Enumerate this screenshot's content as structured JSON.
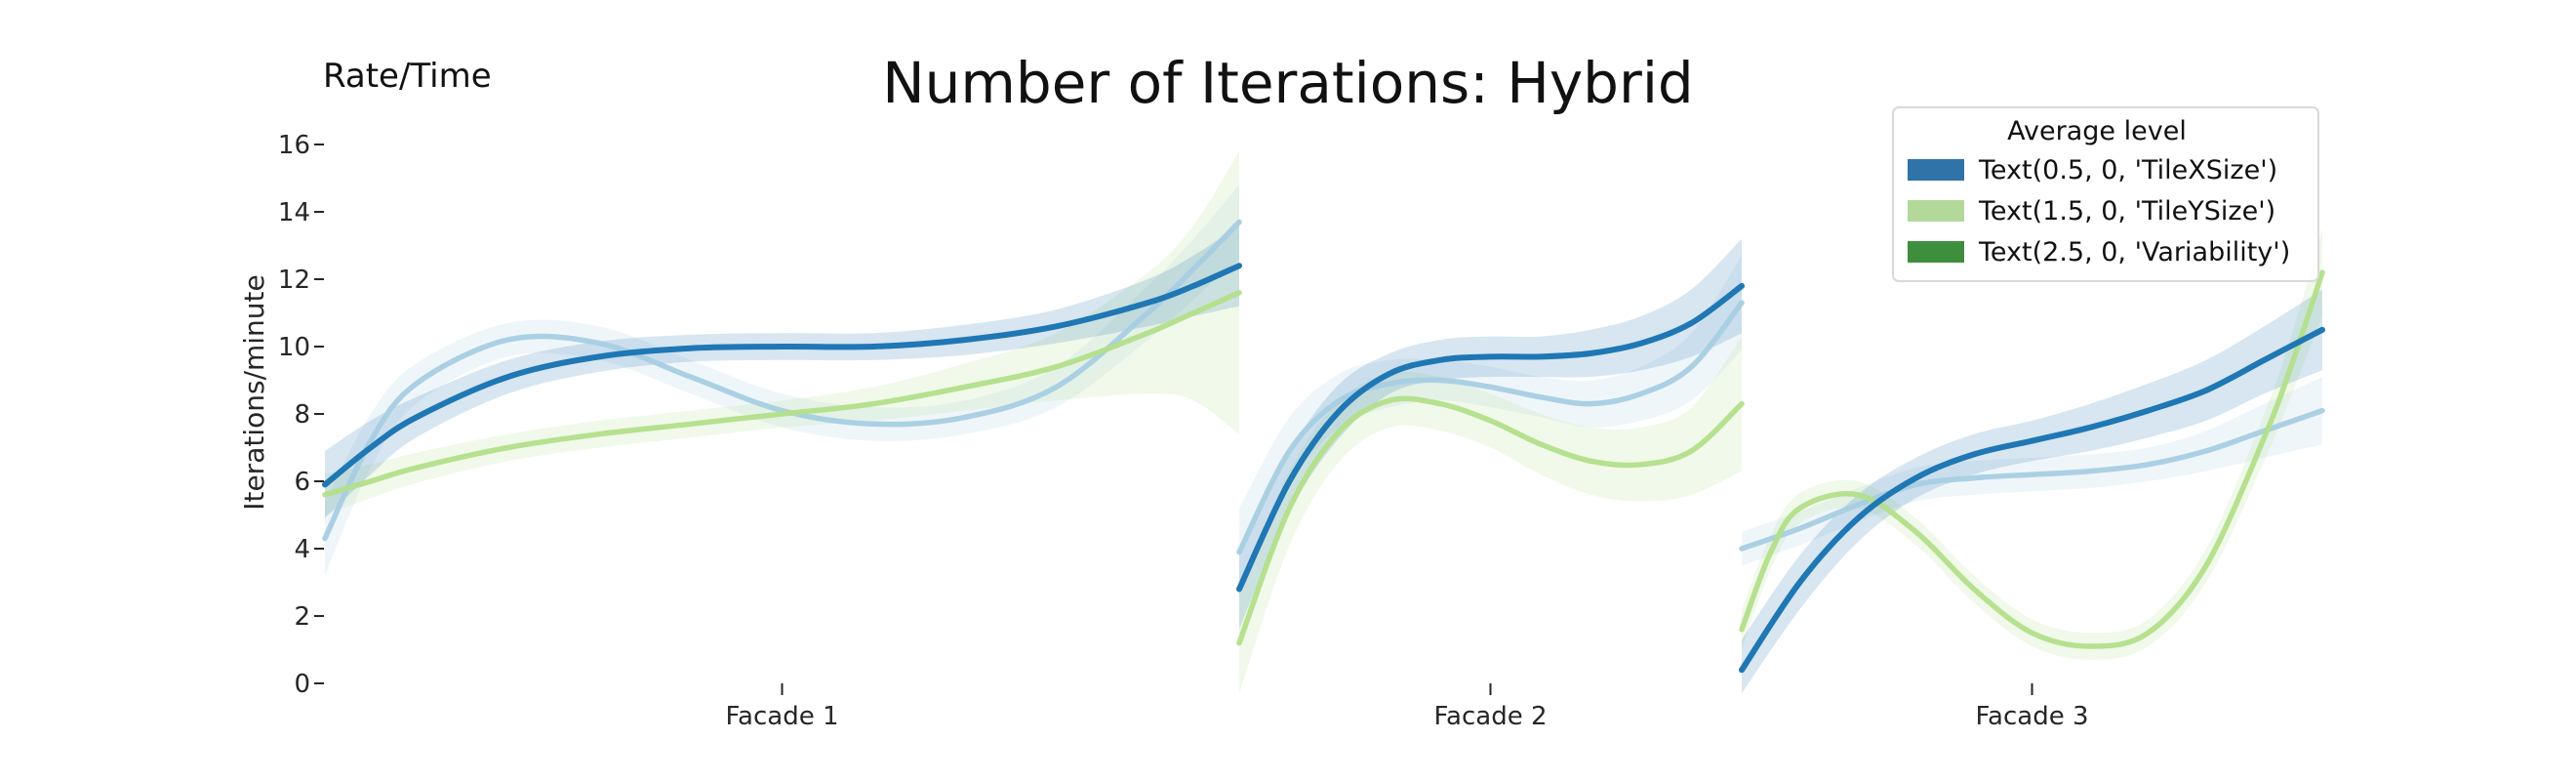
{
  "chart_data": {
    "type": "line",
    "title": "Number of Iterations: Hybrid",
    "corner_label": "Rate/Time",
    "ylabel": "Iterations/minute",
    "xlabel": "",
    "ylim": [
      0,
      16
    ],
    "yticks": [
      0,
      2,
      4,
      6,
      8,
      10,
      12,
      14,
      16
    ],
    "ytick_labels": [
      "0",
      "2",
      "4",
      "6",
      "8",
      "10",
      "12",
      "14",
      "16"
    ],
    "categories": [
      "Facade 1",
      "Facade 2",
      "Facade 3"
    ],
    "legend": {
      "title": "Average level",
      "placement": "top-right",
      "entries": [
        {
          "label": "Text(0.5, 0, 'TileXSize')",
          "color": "#2f73a8"
        },
        {
          "label": "Text(1.5, 0, 'TileYSize')",
          "color": "#b2d99a"
        },
        {
          "label": "Text(2.5, 0, 'Variability')",
          "color": "#3d8f3e"
        }
      ]
    },
    "colors": {
      "dark_blue": "#1f77b4",
      "light_blue": "#a6cee3",
      "light_green": "#b2df8a"
    },
    "panels": [
      {
        "category": "Facade 1",
        "series": [
          {
            "color": "#a6cee3",
            "x": [
              0,
              0.05,
              0.1,
              0.2,
              0.3,
              0.4,
              0.5,
              0.6,
              0.7,
              0.8,
              0.9,
              0.95,
              1.0
            ],
            "y": [
              4.3,
              7.2,
              8.9,
              10.2,
              10.1,
              9.1,
              8.1,
              7.7,
              7.9,
              8.8,
              11.0,
              12.3,
              13.7
            ],
            "band_half_width": [
              1.1,
              0.8,
              0.6,
              0.5,
              0.5,
              0.5,
              0.5,
              0.5,
              0.5,
              0.6,
              0.8,
              0.9,
              1.1
            ]
          },
          {
            "color": "#b2df8a",
            "x": [
              0,
              0.05,
              0.1,
              0.2,
              0.3,
              0.4,
              0.5,
              0.6,
              0.7,
              0.8,
              0.9,
              0.95,
              1.0
            ],
            "y": [
              5.6,
              6.0,
              6.4,
              7.0,
              7.4,
              7.7,
              8.0,
              8.3,
              8.8,
              9.4,
              10.4,
              11.0,
              11.6
            ],
            "band_half_width": [
              0.6,
              0.5,
              0.45,
              0.4,
              0.4,
              0.4,
              0.4,
              0.5,
              0.7,
              1.0,
              1.8,
              2.6,
              4.2
            ]
          },
          {
            "color": "#1f77b4",
            "x": [
              0,
              0.05,
              0.1,
              0.2,
              0.3,
              0.4,
              0.5,
              0.6,
              0.7,
              0.8,
              0.9,
              0.95,
              1.0
            ],
            "y": [
              5.9,
              7.0,
              7.9,
              9.1,
              9.7,
              9.95,
              10.0,
              10.0,
              10.2,
              10.6,
              11.3,
              11.8,
              12.4
            ],
            "band_half_width": [
              1.0,
              0.8,
              0.6,
              0.5,
              0.45,
              0.4,
              0.4,
              0.4,
              0.45,
              0.5,
              0.7,
              0.9,
              1.2
            ]
          }
        ]
      },
      {
        "category": "Facade 2",
        "series": [
          {
            "color": "#a6cee3",
            "x": [
              0,
              0.1,
              0.2,
              0.3,
              0.4,
              0.5,
              0.6,
              0.7,
              0.8,
              0.9,
              1.0
            ],
            "y": [
              3.9,
              6.9,
              8.4,
              8.9,
              9.0,
              8.8,
              8.5,
              8.3,
              8.6,
              9.4,
              11.3
            ],
            "band_half_width": [
              1.3,
              1.0,
              0.8,
              0.7,
              0.6,
              0.6,
              0.6,
              0.7,
              0.8,
              1.0,
              1.4
            ]
          },
          {
            "color": "#b2df8a",
            "x": [
              0,
              0.1,
              0.2,
              0.3,
              0.4,
              0.5,
              0.6,
              0.7,
              0.8,
              0.9,
              1.0
            ],
            "y": [
              1.2,
              5.2,
              7.5,
              8.4,
              8.3,
              7.8,
              7.1,
              6.6,
              6.5,
              6.9,
              8.3
            ],
            "band_half_width": [
              1.5,
              1.1,
              0.9,
              0.8,
              0.8,
              0.8,
              0.9,
              1.0,
              1.1,
              1.3,
              2.0
            ]
          },
          {
            "color": "#1f77b4",
            "x": [
              0,
              0.1,
              0.2,
              0.3,
              0.4,
              0.5,
              0.6,
              0.7,
              0.8,
              0.9,
              1.0
            ],
            "y": [
              2.8,
              6.0,
              8.1,
              9.2,
              9.6,
              9.7,
              9.7,
              9.8,
              10.1,
              10.7,
              11.8
            ],
            "band_half_width": [
              1.2,
              0.9,
              0.8,
              0.6,
              0.6,
              0.6,
              0.6,
              0.7,
              0.8,
              1.0,
              1.4
            ]
          }
        ]
      },
      {
        "category": "Facade 3",
        "series": [
          {
            "color": "#a6cee3",
            "x": [
              0,
              0.1,
              0.2,
              0.3,
              0.4,
              0.5,
              0.6,
              0.7,
              0.8,
              0.9,
              1.0
            ],
            "y": [
              4.0,
              4.6,
              5.3,
              5.9,
              6.1,
              6.2,
              6.3,
              6.5,
              6.9,
              7.5,
              8.1
            ],
            "band_half_width": [
              0.5,
              0.5,
              0.5,
              0.5,
              0.5,
              0.5,
              0.5,
              0.5,
              0.6,
              0.8,
              1.0
            ]
          },
          {
            "color": "#b2df8a",
            "x": [
              0,
              0.05,
              0.1,
              0.2,
              0.3,
              0.4,
              0.5,
              0.6,
              0.7,
              0.8,
              0.9,
              0.95,
              1.0
            ],
            "y": [
              1.6,
              3.9,
              5.2,
              5.6,
              4.5,
              2.8,
              1.5,
              1.1,
              1.5,
              3.5,
              7.3,
              9.6,
              12.2
            ],
            "band_half_width": [
              0.6,
              0.5,
              0.45,
              0.4,
              0.4,
              0.4,
              0.4,
              0.4,
              0.4,
              0.5,
              0.7,
              0.9,
              1.3
            ]
          },
          {
            "color": "#1f77b4",
            "x": [
              0,
              0.1,
              0.2,
              0.3,
              0.4,
              0.5,
              0.6,
              0.7,
              0.8,
              0.9,
              1.0
            ],
            "y": [
              0.4,
              3.0,
              4.9,
              6.1,
              6.8,
              7.2,
              7.6,
              8.1,
              8.7,
              9.6,
              10.5
            ],
            "band_half_width": [
              0.9,
              0.8,
              0.7,
              0.6,
              0.6,
              0.6,
              0.7,
              0.8,
              0.9,
              1.0,
              1.2
            ]
          }
        ]
      }
    ]
  }
}
